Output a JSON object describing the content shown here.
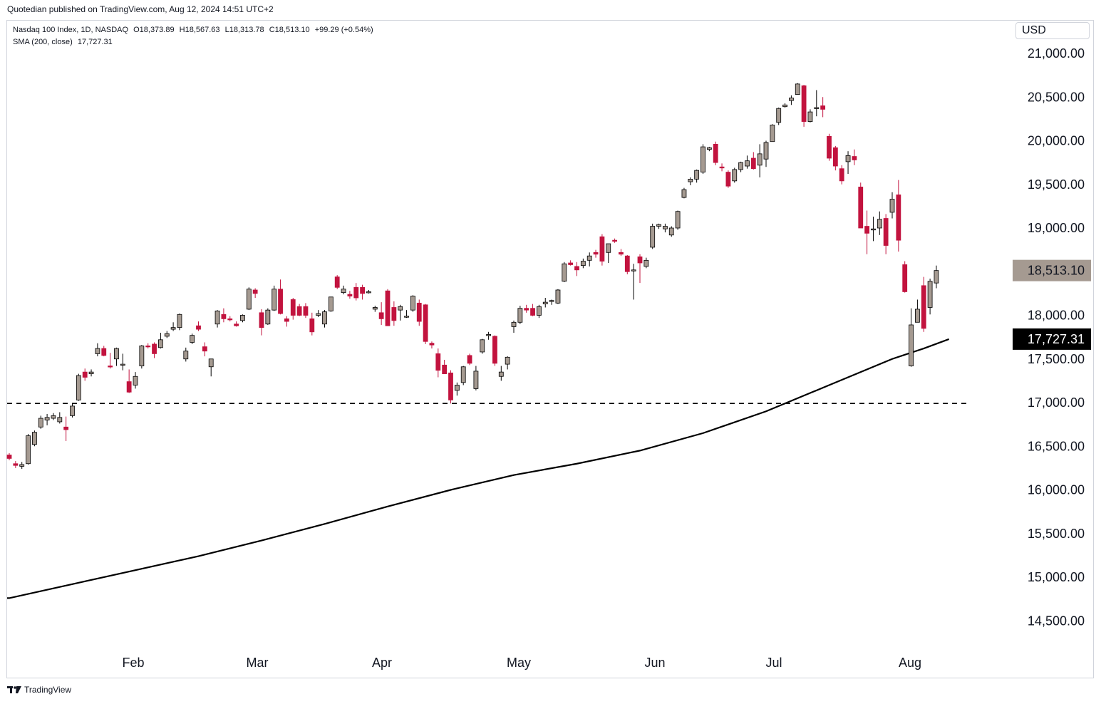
{
  "header": {
    "published": "Quotedian published on TradingView.com, Aug 12, 2024 14:51 UTC+2"
  },
  "legend": {
    "symbol": "Nasdaq 100 Index, 1D, NASDAQ",
    "open": "O18,373.89",
    "high": "H18,567.63",
    "low": "L18,313.78",
    "close": "C18,513.10",
    "change": "+99.29 (+0.54%)",
    "sma_label": "SMA (200, close)",
    "sma_value": "17,727.31"
  },
  "currency": "USD",
  "footer": {
    "brand": "TradingView"
  },
  "colors": {
    "up": "#a59a91",
    "down": "#c2133e",
    "sma": "#000000",
    "price_label_bg": "#a59a91",
    "sma_label_bg": "#000000",
    "grid": "none"
  },
  "chart_data": {
    "type": "candlestick",
    "yaxis": {
      "ticks": [
        "21,000.00",
        "20,500.00",
        "20,000.00",
        "19,500.00",
        "19,000.00",
        "18,500.00",
        "18,000.00",
        "17,500.00",
        "17,000.00",
        "16,500.00",
        "16,000.00",
        "15,500.00",
        "15,000.00",
        "14,500.00"
      ],
      "range": [
        14300,
        21450
      ],
      "position": "right"
    },
    "xaxis": {
      "ticks": [
        "Feb",
        "Mar",
        "Apr",
        "May",
        "Jun",
        "Jul",
        "Aug"
      ]
    },
    "last_price_label": "18,513.10",
    "sma_label": "17,727.31",
    "support_level": 16990,
    "candles": [
      {
        "o": 16400,
        "h": 16420,
        "l": 16340,
        "c": 16360
      },
      {
        "o": 16300,
        "h": 16330,
        "l": 16250,
        "c": 16280
      },
      {
        "o": 16270,
        "h": 16320,
        "l": 16240,
        "c": 16290
      },
      {
        "o": 16300,
        "h": 16640,
        "l": 16290,
        "c": 16620
      },
      {
        "o": 16520,
        "h": 16680,
        "l": 16500,
        "c": 16660
      },
      {
        "o": 16720,
        "h": 16850,
        "l": 16700,
        "c": 16820
      },
      {
        "o": 16800,
        "h": 16870,
        "l": 16740,
        "c": 16830
      },
      {
        "o": 16820,
        "h": 16880,
        "l": 16800,
        "c": 16850
      },
      {
        "o": 16780,
        "h": 16890,
        "l": 16760,
        "c": 16830
      },
      {
        "o": 16720,
        "h": 16840,
        "l": 16560,
        "c": 16690
      },
      {
        "o": 16850,
        "h": 16990,
        "l": 16830,
        "c": 16960
      },
      {
        "o": 17030,
        "h": 17330,
        "l": 17020,
        "c": 17310
      },
      {
        "o": 17350,
        "h": 17390,
        "l": 17250,
        "c": 17290
      },
      {
        "o": 17330,
        "h": 17380,
        "l": 17300,
        "c": 17350
      },
      {
        "o": 17560,
        "h": 17680,
        "l": 17530,
        "c": 17620
      },
      {
        "o": 17620,
        "h": 17650,
        "l": 17530,
        "c": 17540
      },
      {
        "o": 17420,
        "h": 17570,
        "l": 17390,
        "c": 17410
      },
      {
        "o": 17500,
        "h": 17630,
        "l": 17420,
        "c": 17620
      },
      {
        "o": 17430,
        "h": 17560,
        "l": 17370,
        "c": 17440
      },
      {
        "o": 17240,
        "h": 17380,
        "l": 17110,
        "c": 17120
      },
      {
        "o": 17200,
        "h": 17350,
        "l": 17160,
        "c": 17300
      },
      {
        "o": 17420,
        "h": 17660,
        "l": 17390,
        "c": 17650
      },
      {
        "o": 17650,
        "h": 17680,
        "l": 17620,
        "c": 17640
      },
      {
        "o": 17670,
        "h": 17690,
        "l": 17510,
        "c": 17560
      },
      {
        "o": 17630,
        "h": 17800,
        "l": 17620,
        "c": 17720
      },
      {
        "o": 17760,
        "h": 17820,
        "l": 17740,
        "c": 17790
      },
      {
        "o": 17840,
        "h": 17920,
        "l": 17820,
        "c": 17860
      },
      {
        "o": 17860,
        "h": 18020,
        "l": 17830,
        "c": 18010
      },
      {
        "o": 17500,
        "h": 17630,
        "l": 17470,
        "c": 17590
      },
      {
        "o": 17690,
        "h": 17790,
        "l": 17670,
        "c": 17770
      },
      {
        "o": 17880,
        "h": 17930,
        "l": 17820,
        "c": 17840
      },
      {
        "o": 17640,
        "h": 17690,
        "l": 17530,
        "c": 17590
      },
      {
        "o": 17410,
        "h": 17470,
        "l": 17300,
        "c": 17500
      },
      {
        "o": 17900,
        "h": 18060,
        "l": 17860,
        "c": 18050
      },
      {
        "o": 18010,
        "h": 18080,
        "l": 17920,
        "c": 17960
      },
      {
        "o": 17960,
        "h": 17990,
        "l": 17930,
        "c": 17950
      },
      {
        "o": 17900,
        "h": 17930,
        "l": 17870,
        "c": 17880
      },
      {
        "o": 17940,
        "h": 18010,
        "l": 17920,
        "c": 18000
      },
      {
        "o": 18070,
        "h": 18320,
        "l": 18060,
        "c": 18300
      },
      {
        "o": 18290,
        "h": 18310,
        "l": 18200,
        "c": 18250
      },
      {
        "o": 18030,
        "h": 18070,
        "l": 17770,
        "c": 17860
      },
      {
        "o": 17900,
        "h": 18080,
        "l": 17890,
        "c": 18060
      },
      {
        "o": 18060,
        "h": 18340,
        "l": 18050,
        "c": 18300
      },
      {
        "o": 18300,
        "h": 18410,
        "l": 18010,
        "c": 18020
      },
      {
        "o": 17960,
        "h": 17990,
        "l": 17870,
        "c": 17930
      },
      {
        "o": 18180,
        "h": 18200,
        "l": 17950,
        "c": 18000
      },
      {
        "o": 18100,
        "h": 18130,
        "l": 17990,
        "c": 18000
      },
      {
        "o": 18100,
        "h": 18140,
        "l": 17970,
        "c": 18000
      },
      {
        "o": 17960,
        "h": 18030,
        "l": 17770,
        "c": 17810
      },
      {
        "o": 18000,
        "h": 18060,
        "l": 17980,
        "c": 18020
      },
      {
        "o": 17900,
        "h": 18060,
        "l": 17860,
        "c": 18040
      },
      {
        "o": 18050,
        "h": 18210,
        "l": 18040,
        "c": 18210
      },
      {
        "o": 18440,
        "h": 18460,
        "l": 18300,
        "c": 18320
      },
      {
        "o": 18260,
        "h": 18340,
        "l": 18240,
        "c": 18300
      },
      {
        "o": 18240,
        "h": 18280,
        "l": 18190,
        "c": 18220
      },
      {
        "o": 18320,
        "h": 18370,
        "l": 18170,
        "c": 18200
      },
      {
        "o": 18320,
        "h": 18350,
        "l": 18180,
        "c": 18250
      },
      {
        "o": 18270,
        "h": 18290,
        "l": 18250,
        "c": 18270
      },
      {
        "o": 18070,
        "h": 18110,
        "l": 18040,
        "c": 18090
      },
      {
        "o": 18030,
        "h": 18150,
        "l": 17890,
        "c": 17960
      },
      {
        "o": 18280,
        "h": 18300,
        "l": 17880,
        "c": 17880
      },
      {
        "o": 18090,
        "h": 18160,
        "l": 17880,
        "c": 17940
      },
      {
        "o": 18060,
        "h": 18120,
        "l": 17940,
        "c": 18100
      },
      {
        "o": 17990,
        "h": 18060,
        "l": 17970,
        "c": 17990
      },
      {
        "o": 18060,
        "h": 18230,
        "l": 18040,
        "c": 18220
      },
      {
        "o": 18140,
        "h": 18180,
        "l": 17880,
        "c": 17930
      },
      {
        "o": 18120,
        "h": 18130,
        "l": 17670,
        "c": 17700
      },
      {
        "o": 17680,
        "h": 17700,
        "l": 17620,
        "c": 17660
      },
      {
        "o": 17560,
        "h": 17620,
        "l": 17290,
        "c": 17370
      },
      {
        "o": 17430,
        "h": 17490,
        "l": 17380,
        "c": 17330
      },
      {
        "o": 17340,
        "h": 17370,
        "l": 16990,
        "c": 17030
      },
      {
        "o": 17140,
        "h": 17230,
        "l": 17080,
        "c": 17200
      },
      {
        "o": 17230,
        "h": 17420,
        "l": 17200,
        "c": 17410
      },
      {
        "o": 17540,
        "h": 17560,
        "l": 17430,
        "c": 17450
      },
      {
        "o": 17160,
        "h": 17420,
        "l": 17140,
        "c": 17360
      },
      {
        "o": 17580,
        "h": 17730,
        "l": 17560,
        "c": 17720
      },
      {
        "o": 17770,
        "h": 17810,
        "l": 17720,
        "c": 17780
      },
      {
        "o": 17760,
        "h": 17770,
        "l": 17420,
        "c": 17450
      },
      {
        "o": 17300,
        "h": 17420,
        "l": 17250,
        "c": 17350
      },
      {
        "o": 17440,
        "h": 17530,
        "l": 17380,
        "c": 17520
      },
      {
        "o": 17870,
        "h": 17940,
        "l": 17800,
        "c": 17920
      },
      {
        "o": 17920,
        "h": 18110,
        "l": 17900,
        "c": 18080
      },
      {
        "o": 18080,
        "h": 18120,
        "l": 18030,
        "c": 18060
      },
      {
        "o": 18080,
        "h": 18130,
        "l": 17990,
        "c": 18000
      },
      {
        "o": 18000,
        "h": 18120,
        "l": 17970,
        "c": 18100
      },
      {
        "o": 18130,
        "h": 18200,
        "l": 18090,
        "c": 18150
      },
      {
        "o": 18160,
        "h": 18180,
        "l": 18120,
        "c": 18170
      },
      {
        "o": 18140,
        "h": 18300,
        "l": 18130,
        "c": 18290
      },
      {
        "o": 18390,
        "h": 18610,
        "l": 18380,
        "c": 18590
      },
      {
        "o": 18600,
        "h": 18630,
        "l": 18570,
        "c": 18580
      },
      {
        "o": 18560,
        "h": 18610,
        "l": 18450,
        "c": 18520
      },
      {
        "o": 18570,
        "h": 18650,
        "l": 18540,
        "c": 18620
      },
      {
        "o": 18630,
        "h": 18720,
        "l": 18560,
        "c": 18680
      },
      {
        "o": 18720,
        "h": 18750,
        "l": 18660,
        "c": 18700
      },
      {
        "o": 18900,
        "h": 18930,
        "l": 18570,
        "c": 18620
      },
      {
        "o": 18720,
        "h": 18820,
        "l": 18600,
        "c": 18820
      },
      {
        "o": 18860,
        "h": 18880,
        "l": 18830,
        "c": 18850
      },
      {
        "o": 18720,
        "h": 18760,
        "l": 18680,
        "c": 18700
      },
      {
        "o": 18680,
        "h": 18690,
        "l": 18470,
        "c": 18500
      },
      {
        "o": 18510,
        "h": 18590,
        "l": 18180,
        "c": 18520
      },
      {
        "o": 18670,
        "h": 18700,
        "l": 18370,
        "c": 18600
      },
      {
        "o": 18560,
        "h": 18660,
        "l": 18540,
        "c": 18630
      },
      {
        "o": 18780,
        "h": 19050,
        "l": 18760,
        "c": 19020
      },
      {
        "o": 19020,
        "h": 19050,
        "l": 18990,
        "c": 19040
      },
      {
        "o": 18990,
        "h": 19050,
        "l": 18950,
        "c": 19020
      },
      {
        "o": 18920,
        "h": 19020,
        "l": 18900,
        "c": 19000
      },
      {
        "o": 19000,
        "h": 19200,
        "l": 18980,
        "c": 19190
      },
      {
        "o": 19350,
        "h": 19460,
        "l": 19340,
        "c": 19440
      },
      {
        "o": 19530,
        "h": 19580,
        "l": 19490,
        "c": 19560
      },
      {
        "o": 19560,
        "h": 19670,
        "l": 19520,
        "c": 19660
      },
      {
        "o": 19640,
        "h": 19960,
        "l": 19620,
        "c": 19930
      },
      {
        "o": 19900,
        "h": 19930,
        "l": 19880,
        "c": 19920
      },
      {
        "o": 19960,
        "h": 19990,
        "l": 19720,
        "c": 19750
      },
      {
        "o": 19700,
        "h": 19740,
        "l": 19650,
        "c": 19690
      },
      {
        "o": 19640,
        "h": 19660,
        "l": 19460,
        "c": 19480
      },
      {
        "o": 19540,
        "h": 19690,
        "l": 19520,
        "c": 19670
      },
      {
        "o": 19670,
        "h": 19760,
        "l": 19640,
        "c": 19750
      },
      {
        "o": 19710,
        "h": 19830,
        "l": 19680,
        "c": 19770
      },
      {
        "o": 19800,
        "h": 19870,
        "l": 19670,
        "c": 19680
      },
      {
        "o": 19720,
        "h": 19960,
        "l": 19580,
        "c": 19850
      },
      {
        "o": 19790,
        "h": 20000,
        "l": 19700,
        "c": 19980
      },
      {
        "o": 19990,
        "h": 20190,
        "l": 19990,
        "c": 20180
      },
      {
        "o": 20210,
        "h": 20380,
        "l": 20180,
        "c": 20370
      },
      {
        "o": 20390,
        "h": 20430,
        "l": 20380,
        "c": 20410
      },
      {
        "o": 20460,
        "h": 20520,
        "l": 20410,
        "c": 20490
      },
      {
        "o": 20530,
        "h": 20660,
        "l": 20530,
        "c": 20650
      },
      {
        "o": 20630,
        "h": 20640,
        "l": 20160,
        "c": 20220
      },
      {
        "o": 20220,
        "h": 20360,
        "l": 20210,
        "c": 20330
      },
      {
        "o": 20370,
        "h": 20580,
        "l": 20280,
        "c": 20380
      },
      {
        "o": 20400,
        "h": 20500,
        "l": 20270,
        "c": 20360
      },
      {
        "o": 20050,
        "h": 20080,
        "l": 19770,
        "c": 19800
      },
      {
        "o": 19920,
        "h": 19940,
        "l": 19660,
        "c": 19710
      },
      {
        "o": 19680,
        "h": 19720,
        "l": 19500,
        "c": 19540
      },
      {
        "o": 19760,
        "h": 19880,
        "l": 19620,
        "c": 19830
      },
      {
        "o": 19820,
        "h": 19900,
        "l": 19720,
        "c": 19780
      },
      {
        "o": 19470,
        "h": 19520,
        "l": 19000,
        "c": 19000
      },
      {
        "o": 19020,
        "h": 19200,
        "l": 18700,
        "c": 18940
      },
      {
        "o": 18980,
        "h": 19130,
        "l": 18850,
        "c": 18990
      },
      {
        "o": 19000,
        "h": 19190,
        "l": 18920,
        "c": 19100
      },
      {
        "o": 19110,
        "h": 19160,
        "l": 18700,
        "c": 18800
      },
      {
        "o": 19180,
        "h": 19410,
        "l": 19110,
        "c": 19330
      },
      {
        "o": 19380,
        "h": 19550,
        "l": 18730,
        "c": 18860
      },
      {
        "o": 18580,
        "h": 18620,
        "l": 18260,
        "c": 18270
      },
      {
        "o": 17420,
        "h": 18080,
        "l": 17410,
        "c": 17890
      },
      {
        "o": 17920,
        "h": 18180,
        "l": 17920,
        "c": 18070
      },
      {
        "o": 18340,
        "h": 18440,
        "l": 17810,
        "c": 17850
      },
      {
        "o": 18090,
        "h": 18420,
        "l": 18010,
        "c": 18390
      },
      {
        "o": 18370,
        "h": 18570,
        "l": 18310,
        "c": 18513
      }
    ],
    "sma": {
      "name": "SMA (200, close)",
      "points": [
        [
          0,
          14760
        ],
        [
          10,
          14920
        ],
        [
          20,
          15080
        ],
        [
          30,
          15240
        ],
        [
          40,
          15420
        ],
        [
          50,
          15610
        ],
        [
          60,
          15810
        ],
        [
          70,
          16000
        ],
        [
          80,
          16170
        ],
        [
          90,
          16300
        ],
        [
          100,
          16450
        ],
        [
          110,
          16650
        ],
        [
          120,
          16900
        ],
        [
          130,
          17200
        ],
        [
          140,
          17500
        ],
        [
          145,
          17620
        ],
        [
          149,
          17727
        ]
      ]
    }
  }
}
